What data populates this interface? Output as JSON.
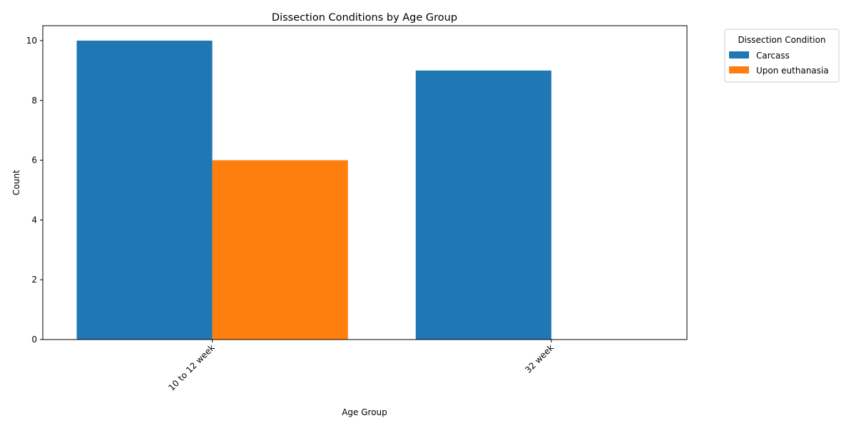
{
  "chart_data": {
    "type": "bar",
    "title": "Dissection Conditions by Age Group",
    "xlabel": "Age Group",
    "ylabel": "Count",
    "categories": [
      "10 to 12 week",
      "32 week"
    ],
    "series": [
      {
        "name": "Carcass",
        "values": [
          10,
          9
        ],
        "color": "#1f77b4"
      },
      {
        "name": "Upon euthanasia",
        "values": [
          6,
          0
        ],
        "color": "#ff7f0e"
      }
    ],
    "ylim": [
      0,
      10.5
    ],
    "yticks": [
      0,
      2,
      4,
      6,
      8,
      10
    ],
    "legend": {
      "title": "Dissection Condition",
      "placement": "outside-top-right"
    },
    "grid": false
  }
}
